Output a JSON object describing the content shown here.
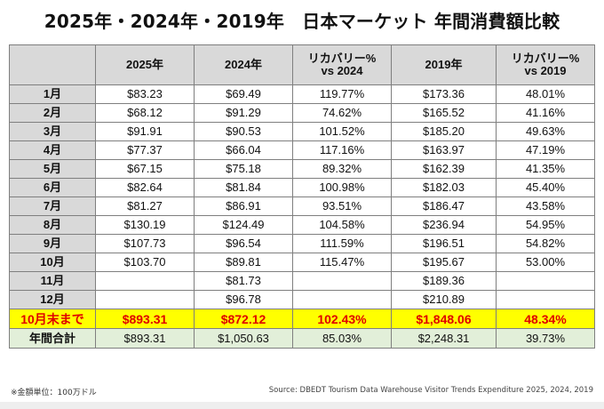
{
  "title": "2025年・2024年・2019年　日本マーケット 年間消費額比較",
  "header": {
    "corner": "",
    "cols": [
      "2025年",
      "2024年",
      "リカバリー%\nvs 2024",
      "2019年",
      "リカバリー%\nvs 2019"
    ]
  },
  "rows": [
    {
      "label": "1月",
      "cells": [
        "$83.23",
        "$69.49",
        "119.77%",
        "$173.36",
        "48.01%"
      ]
    },
    {
      "label": "2月",
      "cells": [
        "$68.12",
        "$91.29",
        "74.62%",
        "$165.52",
        "41.16%"
      ]
    },
    {
      "label": "3月",
      "cells": [
        "$91.91",
        "$90.53",
        "101.52%",
        "$185.20",
        "49.63%"
      ]
    },
    {
      "label": "4月",
      "cells": [
        "$77.37",
        "$66.04",
        "117.16%",
        "$163.97",
        "47.19%"
      ]
    },
    {
      "label": "5月",
      "cells": [
        "$67.15",
        "$75.18",
        "89.32%",
        "$162.39",
        "41.35%"
      ]
    },
    {
      "label": "6月",
      "cells": [
        "$82.64",
        "$81.84",
        "100.98%",
        "$182.03",
        "45.40%"
      ]
    },
    {
      "label": "7月",
      "cells": [
        "$81.27",
        "$86.91",
        "93.51%",
        "$186.47",
        "43.58%"
      ]
    },
    {
      "label": "8月",
      "cells": [
        "$130.19",
        "$124.49",
        "104.58%",
        "$236.94",
        "54.95%"
      ]
    },
    {
      "label": "9月",
      "cells": [
        "$107.73",
        "$96.54",
        "111.59%",
        "$196.51",
        "54.82%"
      ]
    },
    {
      "label": "10月",
      "cells": [
        "$103.70",
        "$89.81",
        "115.47%",
        "$195.67",
        "53.00%"
      ]
    },
    {
      "label": "11月",
      "cells": [
        "",
        "$81.73",
        "",
        "$189.36",
        ""
      ]
    },
    {
      "label": "12月",
      "cells": [
        "",
        "$96.78",
        "",
        "$210.89",
        ""
      ]
    }
  ],
  "ytd": {
    "label": "10月末まで",
    "cells": [
      "$893.31",
      "$872.12",
      "102.43%",
      "$1,848.06",
      "48.34%"
    ]
  },
  "total": {
    "label": "年間合計",
    "cells": [
      "$893.31",
      "$1,050.63",
      "85.03%",
      "$2,248.31",
      "39.73%"
    ]
  },
  "note": "※金額単位：100万ドル",
  "source": "Source: DBEDT Tourism Data Warehouse Visitor Trends Expenditure 2025, 2024, 2019",
  "colors": {
    "header_bg": "#d9d9d9",
    "ytd_bg": "#ffff00",
    "ytd_text": "#e00000",
    "total_bg": "#e2efd9",
    "border": "#7f7f7f"
  }
}
